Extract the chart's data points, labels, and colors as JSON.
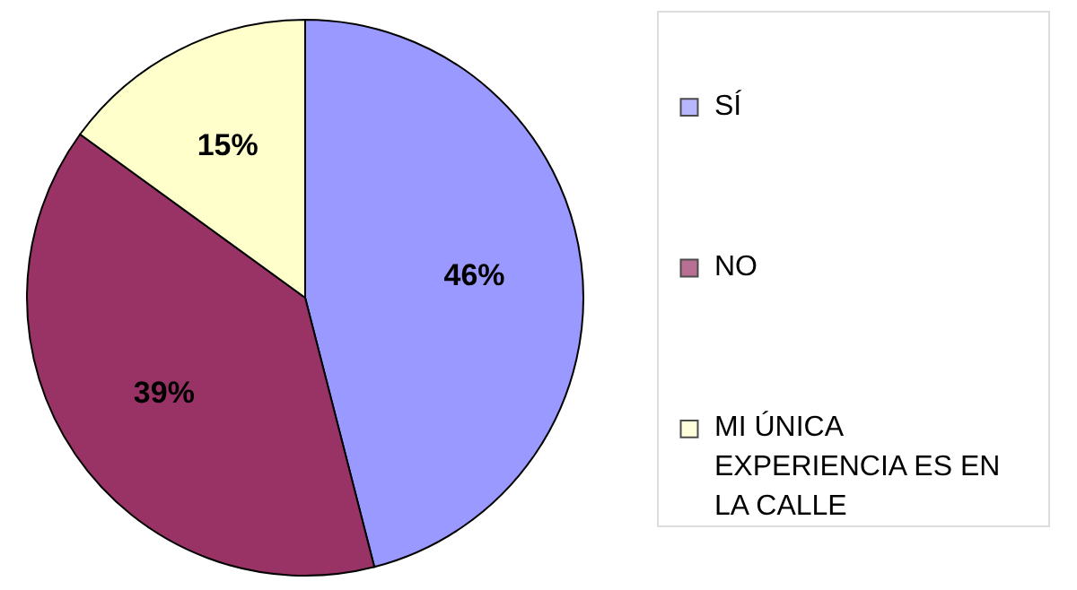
{
  "chart_data": {
    "type": "pie",
    "categories": [
      "SÍ",
      "NO",
      "MI ÚNICA EXPERIENCIA ES EN LA CALLE"
    ],
    "values": [
      46,
      39,
      15
    ],
    "colors": [
      "#9999ff",
      "#993366",
      "#ffffcc"
    ],
    "value_labels": [
      "46%",
      "39%",
      "15%"
    ],
    "legend": "right"
  }
}
